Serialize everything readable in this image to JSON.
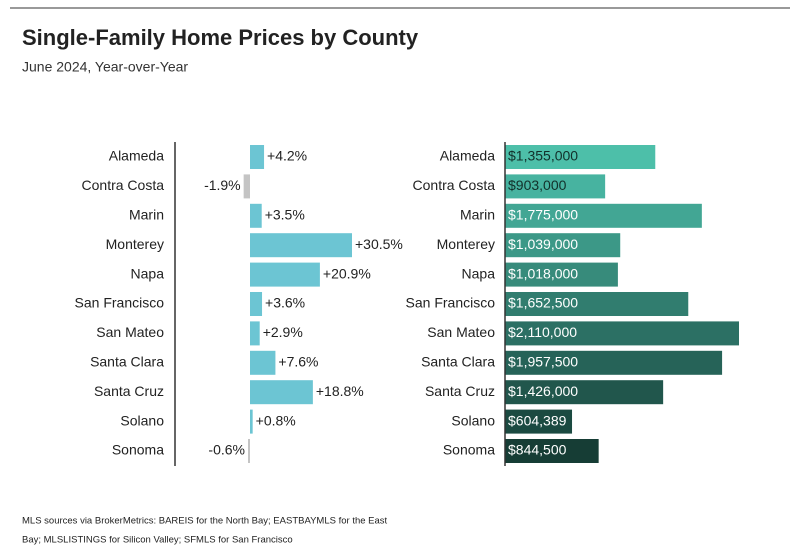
{
  "header": {
    "title": "Single-Family Home Prices by County",
    "subtitle": "June 2024, Year-over-Year"
  },
  "footnote": [
    "MLS sources via BrokerMetrics: BAREIS for the North Bay; EASTBAYMLS for the East",
    "Bay; MLSLISTINGS for Silicon Valley; SFMLS for San Francisco"
  ],
  "chart_data": [
    {
      "type": "diverging-bar",
      "categories": [
        "Alameda",
        "Contra Costa",
        "Marin",
        "Monterey",
        "Napa",
        "San Francisco",
        "San Mateo",
        "Santa Clara",
        "Santa Cruz",
        "Solano",
        "Sonoma"
      ],
      "values": [
        4.2,
        -1.9,
        3.5,
        30.5,
        20.9,
        3.6,
        2.9,
        7.6,
        18.8,
        0.8,
        -0.6
      ],
      "value_labels": [
        "+4.2%",
        "-1.9%",
        "+3.5%",
        "+30.5%",
        "+20.9%",
        "+3.6%",
        "+2.9%",
        "+7.6%",
        "+18.8%",
        "+0.8%",
        "-0.6%"
      ],
      "color": "#6cc5d3",
      "negative_color": "#c4c4c4"
    },
    {
      "type": "bar",
      "categories": [
        "Alameda",
        "Contra Costa",
        "Marin",
        "Monterey",
        "Napa",
        "San Francisco",
        "San Mateo",
        "Santa Clara",
        "Santa Cruz",
        "Solano",
        "Sonoma"
      ],
      "values": [
        1355000,
        903000,
        1775000,
        1039000,
        1018000,
        1652500,
        2110000,
        1957500,
        1426000,
        604389,
        844500
      ],
      "value_labels": [
        "$1,355,000",
        "$903,000",
        "$1,775,000",
        "$1,039,000",
        "$1,018,000",
        "$1,652,500",
        "$2,110,000",
        "$1,957,500",
        "$1,426,000",
        "$604,389",
        "$844,500"
      ],
      "colors": [
        "#4dbfa9",
        "#47b3a0",
        "#42a694",
        "#3c9887",
        "#378b7b",
        "#317d6f",
        "#2c7064",
        "#266358",
        "#21564c",
        "#1b4a41",
        "#163d35"
      ]
    }
  ]
}
